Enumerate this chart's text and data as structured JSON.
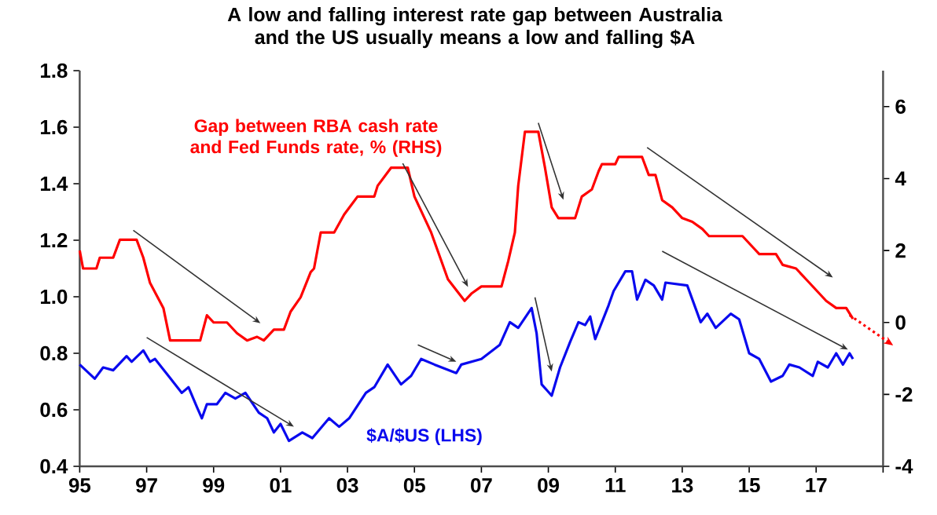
{
  "chart_data": {
    "type": "line",
    "title": "A low and falling interest rate gap between Australia and the US usually means a low and falling $A",
    "xlim": [
      1995,
      2019
    ],
    "xticks": [
      {
        "value": 1995,
        "label": "95"
      },
      {
        "value": 1997,
        "label": "97"
      },
      {
        "value": 1999,
        "label": "99"
      },
      {
        "value": 2001,
        "label": "01"
      },
      {
        "value": 2003,
        "label": "03"
      },
      {
        "value": 2005,
        "label": "05"
      },
      {
        "value": 2007,
        "label": "07"
      },
      {
        "value": 2009,
        "label": "09"
      },
      {
        "value": 2011,
        "label": "11"
      },
      {
        "value": 2013,
        "label": "13"
      },
      {
        "value": 2015,
        "label": "15"
      },
      {
        "value": 2017,
        "label": "17"
      },
      {
        "value": 2019,
        "label": null
      }
    ],
    "ylim": [
      0.4,
      1.8
    ],
    "yticks": [
      {
        "value": 0.4,
        "label": "0.4"
      },
      {
        "value": 0.6,
        "label": "0.6"
      },
      {
        "value": 0.8,
        "label": "0.8"
      },
      {
        "value": 1.0,
        "label": "1.0"
      },
      {
        "value": 1.2,
        "label": "1.2"
      },
      {
        "value": 1.4,
        "label": "1.4"
      },
      {
        "value": 1.6,
        "label": "1.6"
      },
      {
        "value": 1.8,
        "label": "1.8"
      }
    ],
    "y2lim": [
      -4,
      7
    ],
    "y2ticks": [
      -4,
      -2,
      0,
      2,
      4,
      6
    ],
    "grid": false,
    "legend": false,
    "marker": "none",
    "line_style": "solid",
    "series": [
      {
        "name": "Gap between RBA cash rate and Fed Funds rate, % (RHS)",
        "color": "#ff0000",
        "axis": "y2",
        "x": [
          1995.0,
          1995.1,
          1995.5,
          1995.6,
          1996.0,
          1996.2,
          1996.7,
          1996.9,
          1997.1,
          1997.5,
          1997.7,
          1998.6,
          1998.8,
          1999.0,
          1999.4,
          1999.7,
          2000.0,
          2000.3,
          2000.5,
          2000.8,
          2001.1,
          2001.3,
          2001.6,
          2001.9,
          2002.0,
          2002.2,
          2002.6,
          2002.9,
          2003.3,
          2003.8,
          2003.9,
          2004.3,
          2004.8,
          2005.0,
          2005.5,
          2006.0,
          2006.5,
          2006.7,
          2007.0,
          2007.6,
          2007.8,
          2008.0,
          2008.1,
          2008.3,
          2008.7,
          2008.9,
          2009.1,
          2009.3,
          2009.8,
          2010.0,
          2010.3,
          2010.5,
          2010.6,
          2011.0,
          2011.1,
          2011.8,
          2012.0,
          2012.2,
          2012.4,
          2012.7,
          2013.0,
          2013.3,
          2013.6,
          2013.8,
          2014.8,
          2015.1,
          2015.3,
          2015.8,
          2016.0,
          2016.4,
          2016.7,
          2017.0,
          2017.3,
          2017.6,
          2017.9,
          2018.1
        ],
        "values": [
          2.0,
          1.5,
          1.5,
          1.8,
          1.8,
          2.3,
          2.3,
          1.8,
          1.1,
          0.4,
          -0.5,
          -0.5,
          0.2,
          0.0,
          0.0,
          -0.3,
          -0.5,
          -0.4,
          -0.5,
          -0.2,
          -0.2,
          0.3,
          0.7,
          1.4,
          1.5,
          2.5,
          2.5,
          3.0,
          3.5,
          3.5,
          3.8,
          4.3,
          4.3,
          3.5,
          2.5,
          1.2,
          0.6,
          0.8,
          1.0,
          1.0,
          1.7,
          2.5,
          3.8,
          5.3,
          5.3,
          4.3,
          3.2,
          2.9,
          2.9,
          3.5,
          3.7,
          4.2,
          4.4,
          4.4,
          4.6,
          4.6,
          4.1,
          4.1,
          3.4,
          3.2,
          2.9,
          2.8,
          2.6,
          2.4,
          2.4,
          2.1,
          1.9,
          1.9,
          1.6,
          1.5,
          1.2,
          0.9,
          0.6,
          0.4,
          0.4,
          0.1
        ]
      },
      {
        "name": "$A/$US (LHS)",
        "color": "#0a0aee",
        "x": [
          1995.0,
          1995.45,
          1995.7,
          1996.0,
          1996.4,
          1996.55,
          1996.9,
          1997.1,
          1997.25,
          1997.65,
          1998.05,
          1998.25,
          1998.5,
          1998.65,
          1998.8,
          1999.1,
          1999.35,
          1999.65,
          1999.95,
          2000.35,
          2000.6,
          2000.8,
          2001.0,
          2001.25,
          2001.65,
          2001.95,
          2002.45,
          2002.75,
          2003.05,
          2003.55,
          2003.8,
          2004.2,
          2004.6,
          2004.9,
          2005.2,
          2005.6,
          2006.25,
          2006.4,
          2007.0,
          2007.55,
          2007.85,
          2008.1,
          2008.5,
          2008.65,
          2008.8,
          2008.95,
          2009.1,
          2009.35,
          2009.65,
          2009.9,
          2010.1,
          2010.25,
          2010.4,
          2010.8,
          2010.95,
          2011.3,
          2011.5,
          2011.65,
          2011.9,
          2012.15,
          2012.4,
          2012.5,
          2013.15,
          2013.55,
          2013.75,
          2014.0,
          2014.45,
          2014.7,
          2015.0,
          2015.3,
          2015.65,
          2016.0,
          2016.2,
          2016.5,
          2016.9,
          2017.05,
          2017.35,
          2017.6,
          2017.8,
          2018.0,
          2018.1
        ],
        "values": [
          0.76,
          0.71,
          0.75,
          0.74,
          0.79,
          0.77,
          0.81,
          0.77,
          0.78,
          0.72,
          0.66,
          0.68,
          0.61,
          0.57,
          0.62,
          0.62,
          0.66,
          0.64,
          0.66,
          0.59,
          0.57,
          0.52,
          0.55,
          0.49,
          0.52,
          0.5,
          0.57,
          0.54,
          0.57,
          0.66,
          0.68,
          0.76,
          0.69,
          0.72,
          0.78,
          0.76,
          0.73,
          0.76,
          0.78,
          0.83,
          0.91,
          0.89,
          0.96,
          0.87,
          0.69,
          0.67,
          0.65,
          0.75,
          0.84,
          0.91,
          0.9,
          0.93,
          0.85,
          0.97,
          1.02,
          1.09,
          1.09,
          0.99,
          1.06,
          1.04,
          0.99,
          1.05,
          1.04,
          0.91,
          0.94,
          0.89,
          0.94,
          0.92,
          0.8,
          0.78,
          0.7,
          0.72,
          0.76,
          0.75,
          0.72,
          0.77,
          0.75,
          0.8,
          0.76,
          0.8,
          0.78
        ]
      }
    ]
  }
}
